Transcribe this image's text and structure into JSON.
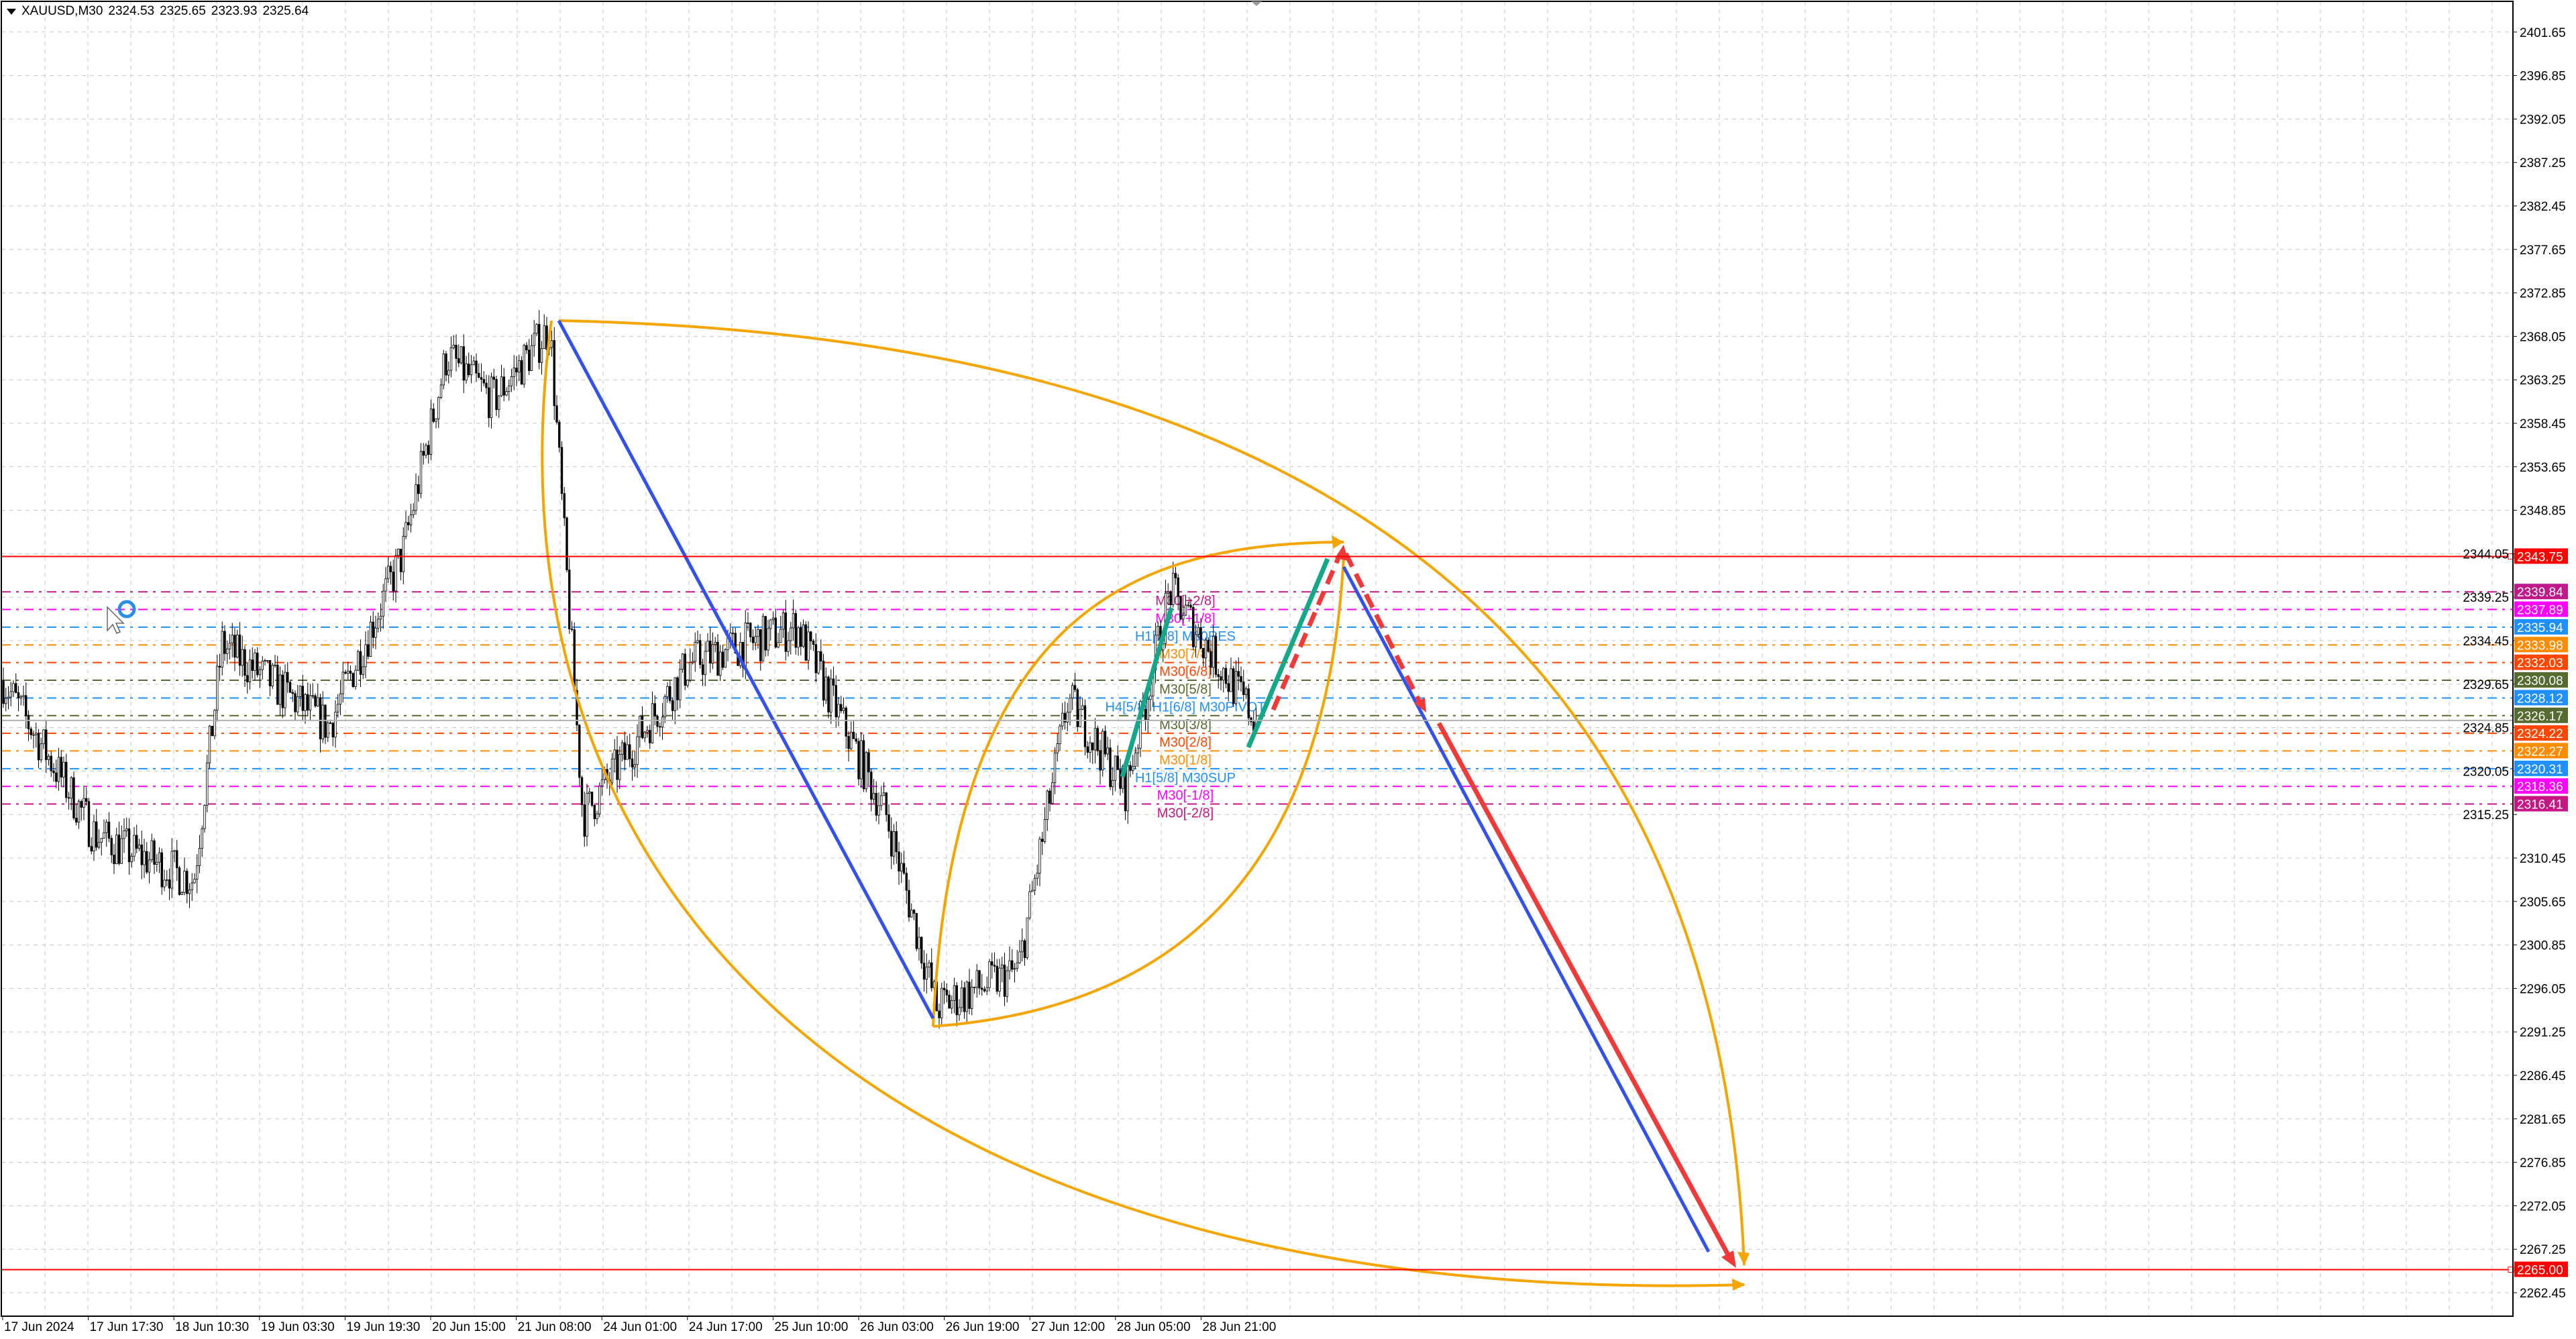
{
  "header": {
    "symbol": "XAUUSD,M30",
    "open": "2324.53",
    "high": "2325.65",
    "low": "2323.93",
    "close": "2325.64",
    "menu_icon": "triangle-down-icon"
  },
  "chart_data": {
    "type": "candlestick",
    "symbol": "XAUUSD",
    "timeframe": "M30",
    "ylim": [
      2260.0,
      2404.0
    ],
    "grid": true,
    "price_ticks": [
      "2401.65",
      "2396.85",
      "2392.05",
      "2387.25",
      "2382.45",
      "2377.65",
      "2372.85",
      "2368.05",
      "2363.25",
      "2358.45",
      "2353.65",
      "2348.85",
      "2344.05",
      "2339.25",
      "2334.45",
      "2329.65",
      "2324.85",
      "2320.05",
      "2315.25",
      "2310.45",
      "2305.65",
      "2300.85",
      "2296.05",
      "2291.25",
      "2286.45",
      "2281.65",
      "2276.85",
      "2272.05",
      "2267.25",
      "2262.45"
    ],
    "time_labels": [
      "17 Jun 2024",
      "17 Jun 17:30",
      "18 Jun 10:30",
      "19 Jun 03:30",
      "19 Jun 19:30",
      "20 Jun 15:00",
      "21 Jun 08:00",
      "24 Jun 01:00",
      "24 Jun 17:00",
      "25 Jun 10:00",
      "26 Jun 03:00",
      "26 Jun 19:00",
      "27 Jun 12:00",
      "28 Jun 05:00",
      "28 Jun 21:00"
    ],
    "approx_close_path": [
      {
        "t": "17 Jun 00:00",
        "p": 2330
      },
      {
        "t": "17 Jun 19:00",
        "p": 2313
      },
      {
        "t": "18 Jun 14:30",
        "p": 2308
      },
      {
        "t": "18 Jun 20:00",
        "p": 2334
      },
      {
        "t": "19 Jun 16:00",
        "p": 2325
      },
      {
        "t": "20 Jun 09:00",
        "p": 2344
      },
      {
        "t": "20 Jun 18:00",
        "p": 2366
      },
      {
        "t": "21 Jun 03:00",
        "p": 2361
      },
      {
        "t": "21 Jun 14:30",
        "p": 2369
      },
      {
        "t": "21 Jun 21:00",
        "p": 2315
      },
      {
        "t": "24 Jun 17:00",
        "p": 2332
      },
      {
        "t": "25 Jun 14:00",
        "p": 2336
      },
      {
        "t": "26 Jun 08:00",
        "p": 2315
      },
      {
        "t": "26 Jun 17:00",
        "p": 2294
      },
      {
        "t": "27 Jun 09:00",
        "p": 2298
      },
      {
        "t": "27 Jun 19:00",
        "p": 2328
      },
      {
        "t": "28 Jun 06:00",
        "p": 2318
      },
      {
        "t": "28 Jun 14:30",
        "p": 2340
      },
      {
        "t": "28 Jun 23:30",
        "p": 2325.64
      }
    ],
    "current_price": 2325.64,
    "horizontal_lines": [
      {
        "price": 2343.75,
        "label": "2343.75",
        "color": "#ff0000"
      },
      {
        "price": 2265.0,
        "label": "2265.00",
        "color": "#ff0000"
      }
    ],
    "murrey_levels": [
      {
        "price": 2339.84,
        "label": "2339.84",
        "name": "M30[+2/8]",
        "color": "#c01a8a"
      },
      {
        "price": 2337.89,
        "label": "2337.89",
        "name": "M30[+1/8]",
        "color": "#ff00ff"
      },
      {
        "price": 2335.94,
        "label": "2335.94",
        "name": "H1[7/8] M30RES",
        "color": "#1e90ff"
      },
      {
        "price": 2333.98,
        "label": "2333.98",
        "name": "M30[7/8]",
        "color": "#ff8c00"
      },
      {
        "price": 2332.03,
        "label": "2332.03",
        "name": "M30[6/8]",
        "color": "#ff4500"
      },
      {
        "price": 2330.08,
        "label": "2330.08",
        "name": "M30[5/8]",
        "color": "#556b2f"
      },
      {
        "price": 2328.12,
        "label": "2328.12",
        "name": "H4[5/8] H1[6/8] M30PIVOT",
        "color": "#1e90ff"
      },
      {
        "price": 2326.17,
        "label": "2326.17",
        "name": "M30[3/8]",
        "color": "#556b2f"
      },
      {
        "price": 2324.22,
        "label": "2324.22",
        "name": "M30[2/8]",
        "color": "#ff4500"
      },
      {
        "price": 2322.27,
        "label": "2322.27",
        "name": "M30[1/8]",
        "color": "#ff8c00"
      },
      {
        "price": 2320.31,
        "label": "2320.31",
        "name": "H1[5/8] M30SUP",
        "color": "#1e90ff"
      },
      {
        "price": 2318.36,
        "label": "2318.36",
        "name": "M30[-1/8]",
        "color": "#ff00ff"
      },
      {
        "price": 2316.41,
        "label": "2316.41",
        "name": "M30[-2/8]",
        "color": "#c71585"
      }
    ],
    "colors": {
      "trend_blue": "#3350f0",
      "arc_orange": "#f5a500",
      "wave_teal": "#14a88a",
      "forecast_red": "#f03a3a"
    }
  }
}
